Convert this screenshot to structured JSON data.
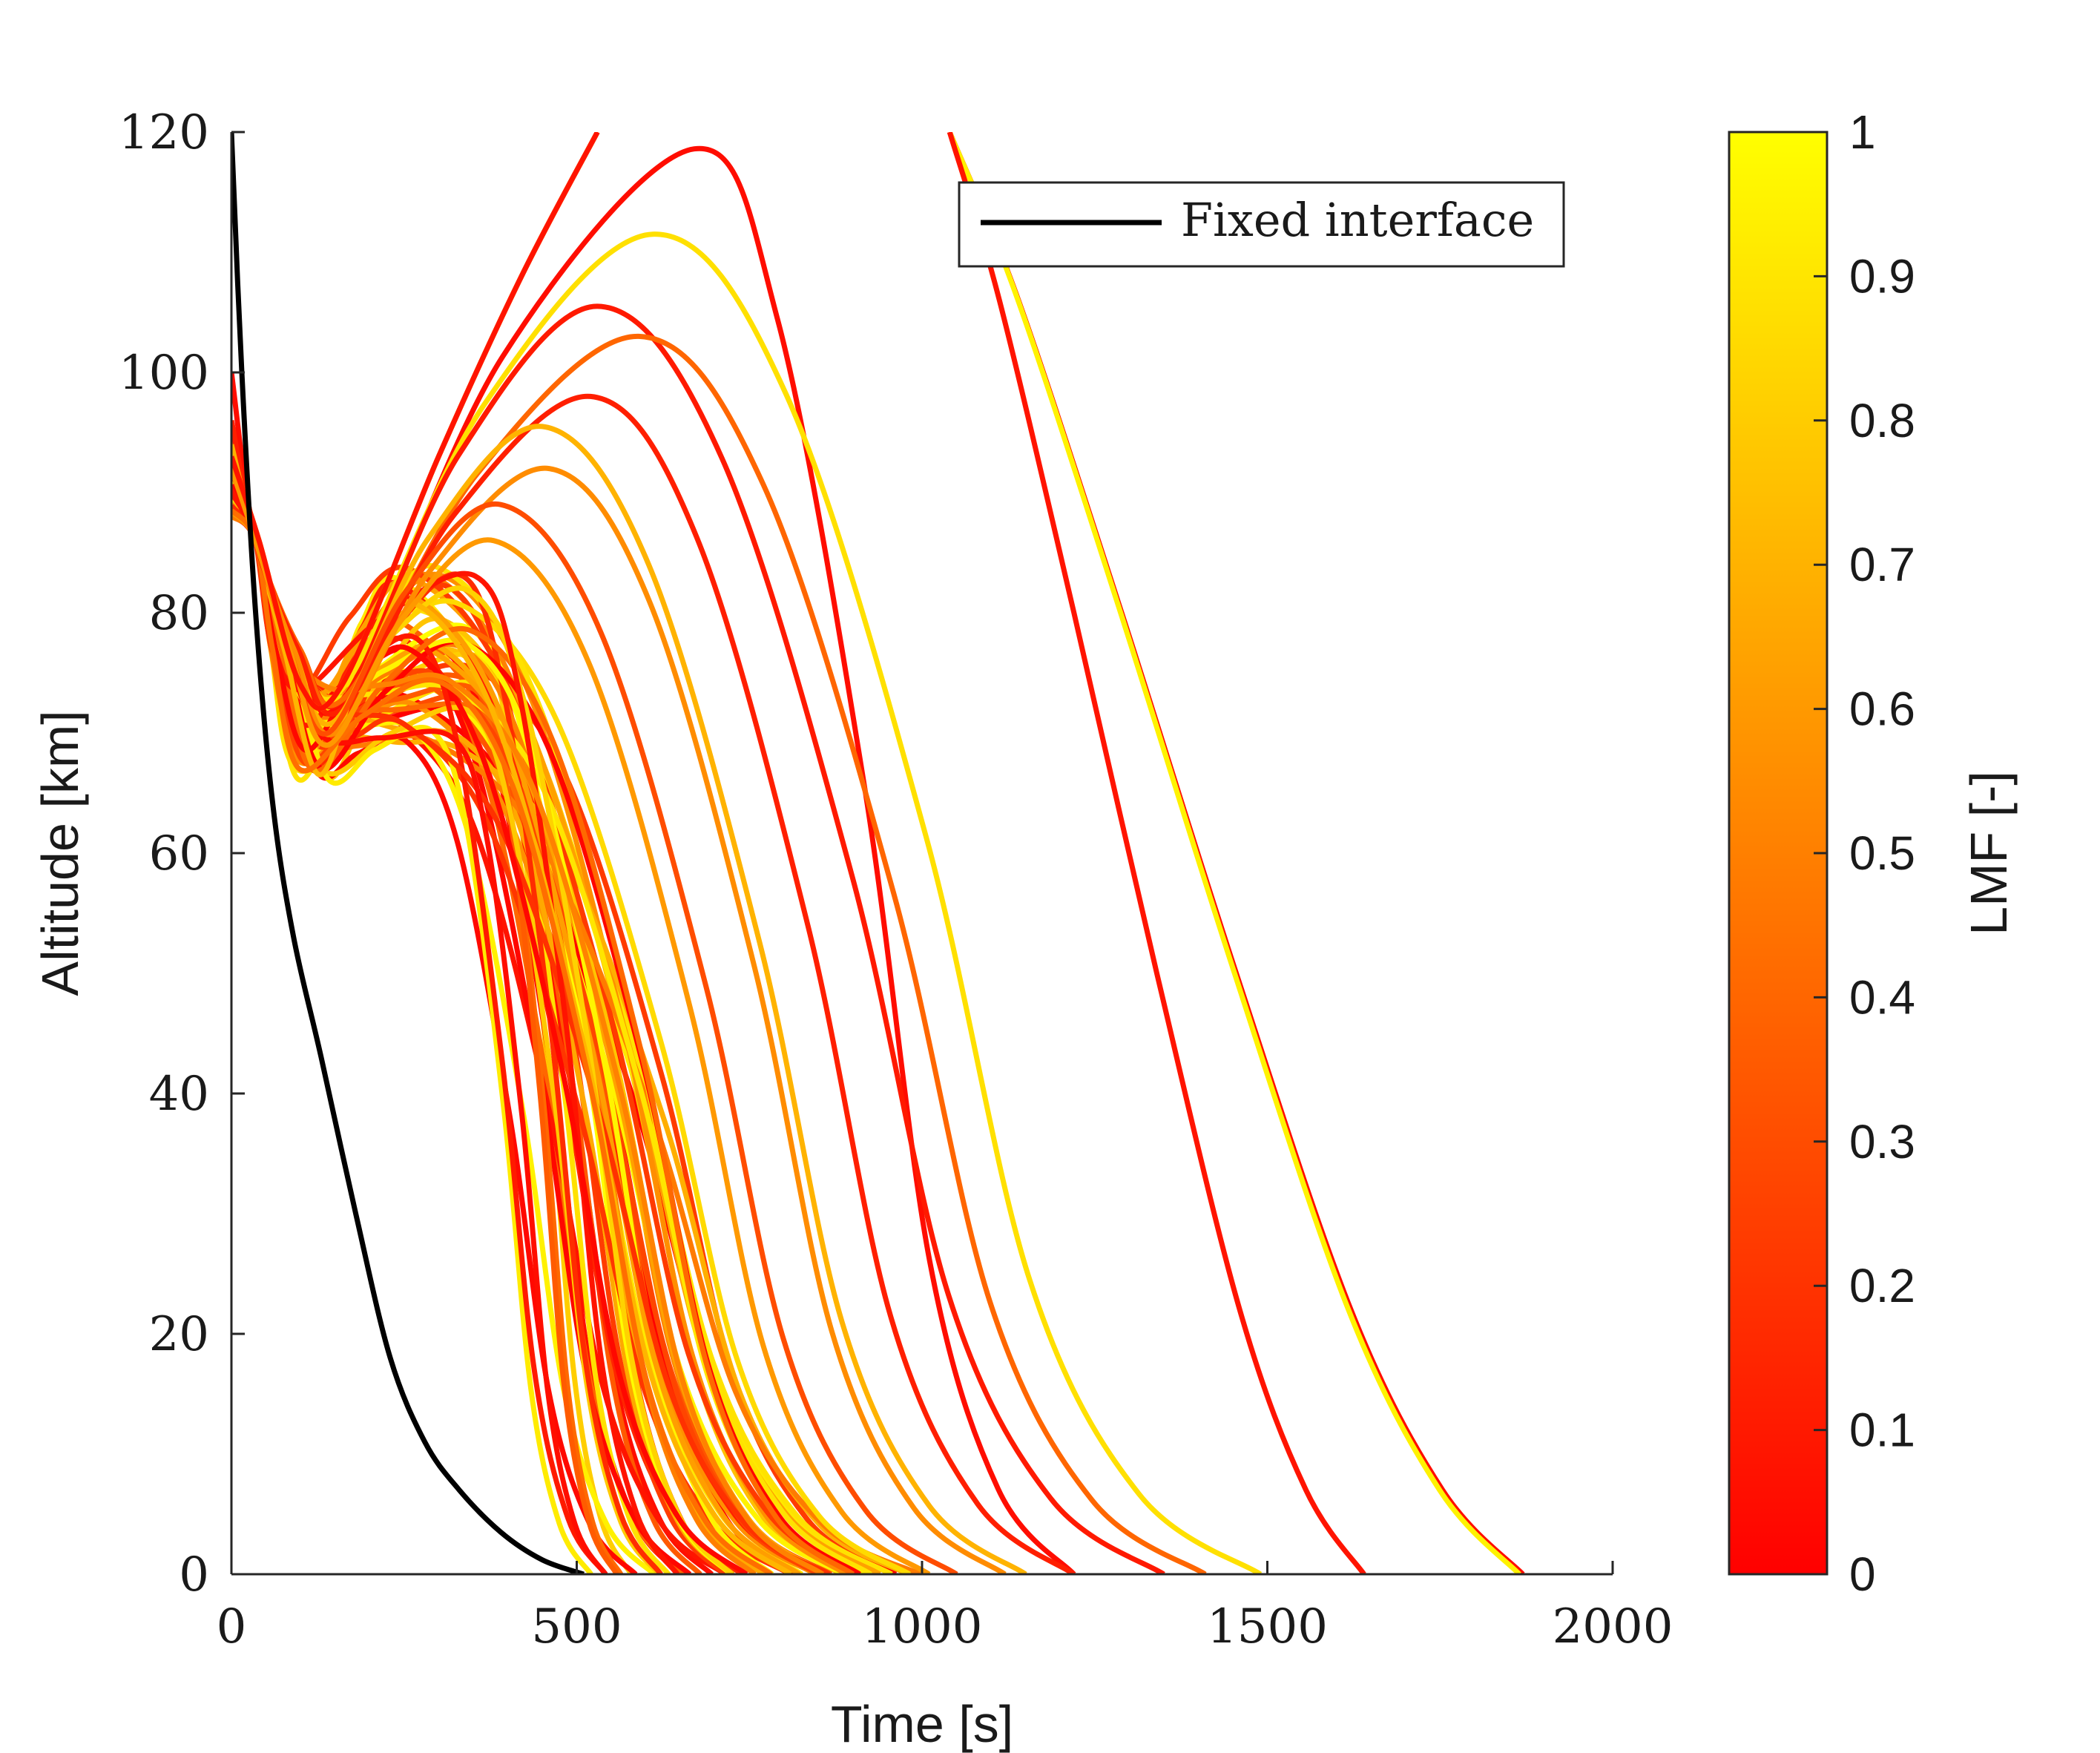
{
  "chart_data": {
    "type": "line",
    "xlabel": "Time [s]",
    "ylabel": "Altitude [km]",
    "xlim": [
      0,
      2000
    ],
    "ylim": [
      0,
      120
    ],
    "xticks": [
      "0",
      "500",
      "1000",
      "1500",
      "2000"
    ],
    "yticks": [
      "0",
      "20",
      "40",
      "60",
      "80",
      "100",
      "120"
    ],
    "grid": false,
    "legend": {
      "position": "top-right",
      "entries": [
        "Fixed interface"
      ]
    },
    "colorbar": {
      "label": "LMF [-]",
      "range": [
        0,
        1
      ],
      "ticks": [
        "0",
        "0.1",
        "0.2",
        "0.3",
        "0.4",
        "0.5",
        "0.6",
        "0.7",
        "0.8",
        "0.9",
        "1"
      ],
      "colormap": "autumn",
      "color_low": "#ff0000",
      "color_high": "#ffff00"
    },
    "fixed_interface": {
      "name": "Fixed interface",
      "color": "#000000",
      "x": [
        0,
        15,
        35,
        60,
        90,
        130,
        180,
        230,
        280,
        330,
        390,
        450,
        510
      ],
      "y": [
        120,
        100,
        80,
        64,
        53,
        43,
        30,
        18,
        11,
        7,
        3.5,
        1.2,
        0
      ]
    },
    "families": [
      {
        "type": "skip",
        "lmf": 0.05,
        "t0": 0,
        "a0": 100,
        "x1": 165,
        "y1": 73,
        "apex_t": 670,
        "apex_a": 118.6,
        "land_t": 1220
      },
      {
        "type": "skip",
        "lmf": 0.88,
        "t0": 0,
        "a0": 95,
        "x1": 165,
        "y1": 74,
        "apex_t": 610,
        "apex_a": 111.5,
        "land_t": 1490
      },
      {
        "type": "skip",
        "lmf": 0.1,
        "t0": 0,
        "a0": 96,
        "x1": 165,
        "y1": 73,
        "apex_t": 530,
        "apex_a": 105.5,
        "land_t": 1350
      },
      {
        "type": "skip",
        "lmf": 0.4,
        "t0": 0,
        "a0": 95,
        "x1": 165,
        "y1": 73,
        "apex_t": 590,
        "apex_a": 103,
        "land_t": 1410
      },
      {
        "type": "skip",
        "lmf": 0.12,
        "t0": 0,
        "a0": 96,
        "x1": 160,
        "y1": 72,
        "apex_t": 520,
        "apex_a": 98,
        "land_t": 1220
      },
      {
        "type": "skip",
        "lmf": 0.7,
        "t0": 0,
        "a0": 94,
        "x1": 150,
        "y1": 71,
        "apex_t": 450,
        "apex_a": 95.5,
        "land_t": 1150
      },
      {
        "type": "skip",
        "lmf": 0.55,
        "t0": 0,
        "a0": 93,
        "x1": 150,
        "y1": 70,
        "apex_t": 460,
        "apex_a": 92,
        "land_t": 1120
      },
      {
        "type": "skip",
        "lmf": 0.3,
        "t0": 0,
        "a0": 92,
        "x1": 140,
        "y1": 70,
        "apex_t": 390,
        "apex_a": 89,
        "land_t": 1050
      },
      {
        "type": "skip",
        "lmf": 0.6,
        "t0": 0,
        "a0": 92,
        "x1": 140,
        "y1": 69,
        "apex_t": 380,
        "apex_a": 86,
        "land_t": 1010
      },
      {
        "type": "exit",
        "lmf": 0.05,
        "land_t": 1870
      },
      {
        "type": "exit",
        "lmf": 0.95,
        "land_t": 1865
      },
      {
        "type": "exit",
        "lmf": 0.08,
        "land_t": 1640
      }
    ],
    "bundle": {
      "count": 60,
      "lmf_seed": 7,
      "land_t_range": [
        520,
        1000
      ],
      "apex_a_range": [
        68,
        84
      ],
      "apex_t_range": [
        240,
        370
      ]
    }
  }
}
